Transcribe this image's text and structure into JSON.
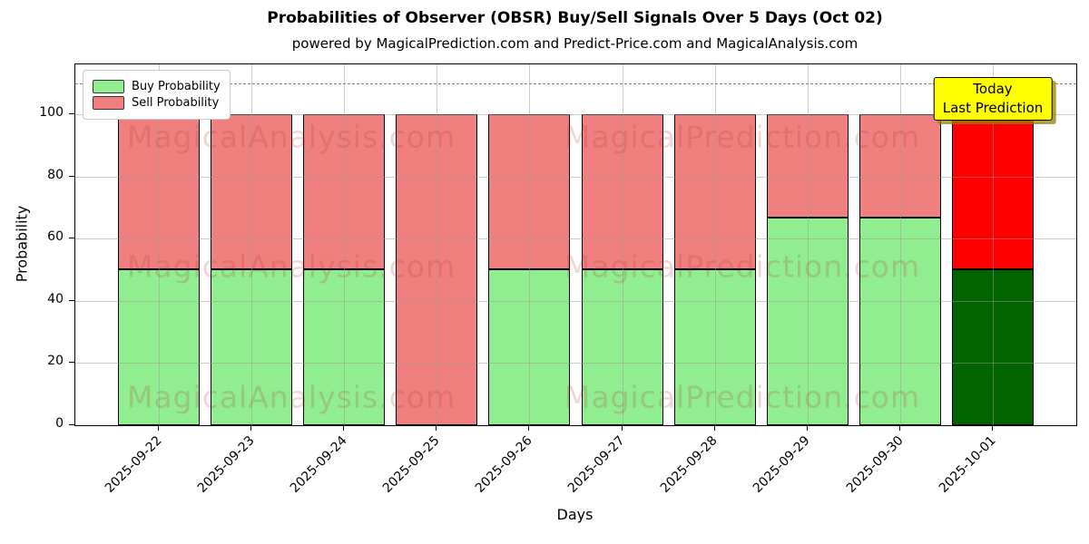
{
  "figure": {
    "title": "Probabilities of Observer (OBSR) Buy/Sell Signals Over 5 Days (Oct 02)",
    "subtitle": "powered by MagicalPrediction.com and Predict-Price.com and MagicalAnalysis.com"
  },
  "axes": {
    "xlabel": "Days",
    "ylabel": "Probability"
  },
  "legend": {
    "items": [
      {
        "label": "Buy Probability",
        "color": "#90EE90"
      },
      {
        "label": "Sell Probability",
        "color": "#F08080"
      }
    ]
  },
  "annotation_box": {
    "lines": [
      "Today",
      "Last Prediction"
    ],
    "bg_color": "#FFFF00"
  },
  "watermarks": {
    "left": "MagicalAnalysis.com",
    "right": "MagicalPrediction.com"
  },
  "chart_data": {
    "type": "bar",
    "stacked": true,
    "title": "Probabilities of Observer (OBSR) Buy/Sell Signals Over 5 Days (Oct 02)",
    "xlabel": "Days",
    "ylabel": "Probability",
    "categories": [
      "2025-09-22",
      "2025-09-23",
      "2025-09-24",
      "2025-09-25",
      "2025-09-26",
      "2025-09-27",
      "2025-09-28",
      "2025-09-29",
      "2025-09-30",
      "2025-10-01"
    ],
    "series": [
      {
        "name": "Buy Probability",
        "color": "#90EE90",
        "values": [
          50,
          50,
          50,
          0,
          50,
          50,
          50,
          66.7,
          66.7,
          50
        ]
      },
      {
        "name": "Sell Probability",
        "color": "#F08080",
        "values": [
          50,
          50,
          50,
          100,
          50,
          50,
          50,
          33.3,
          33.3,
          50
        ]
      }
    ],
    "today_bar": {
      "category": "2025-10-01",
      "buy_color": "#006400",
      "sell_color": "#FF0000"
    },
    "yticks": [
      0,
      20,
      40,
      60,
      80,
      100
    ],
    "ylim": [
      0,
      116
    ],
    "dashed_hline": 110,
    "grid": true,
    "legend_position": "upper left"
  }
}
